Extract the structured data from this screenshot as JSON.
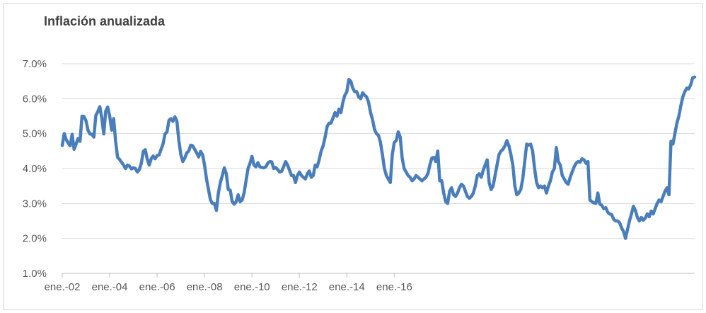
{
  "chart_data": {
    "type": "line",
    "title": "Inflación anualizada",
    "xlabel": "",
    "ylabel": "",
    "ylim": [
      0.01,
      0.07
    ],
    "yticks": [
      "1.0%",
      "2.0%",
      "3.0%",
      "4.0%",
      "5.0%",
      "6.0%",
      "7.0%"
    ],
    "xticks": [
      "ene.-02",
      "ene.-04",
      "ene.-06",
      "ene.-08",
      "ene.-10",
      "ene.-12",
      "ene.-14",
      "ene.-16"
    ],
    "grid": "horizontal",
    "legend": "none",
    "series_color": "#4a7ebb",
    "series": [
      {
        "x_start": "2002-01",
        "frequency": "monthly",
        "values": [
          0.0466,
          0.05,
          0.0483,
          0.0473,
          0.0465,
          0.0498,
          0.0455,
          0.047,
          0.0486,
          0.0478,
          0.055,
          0.0549,
          0.0537,
          0.051,
          0.0499,
          0.0498,
          0.049,
          0.0552,
          0.0563,
          0.0577,
          0.0545,
          0.0499,
          0.0565,
          0.0576,
          0.055,
          0.051,
          0.0543,
          0.0478,
          0.0432,
          0.0426,
          0.0418,
          0.041,
          0.04,
          0.041,
          0.0407,
          0.0399,
          0.0402,
          0.04,
          0.039,
          0.0397,
          0.0415,
          0.0449,
          0.0454,
          0.0427,
          0.041,
          0.0428,
          0.0436,
          0.0428,
          0.0437,
          0.0439,
          0.0455,
          0.047,
          0.0499,
          0.0505,
          0.0538,
          0.0543,
          0.0535,
          0.0548,
          0.0536,
          0.048,
          0.044,
          0.042,
          0.043,
          0.0445,
          0.045,
          0.0467,
          0.0465,
          0.0455,
          0.0445,
          0.0433,
          0.0449,
          0.044,
          0.041,
          0.037,
          0.034,
          0.031,
          0.03,
          0.03,
          0.028,
          0.033,
          0.036,
          0.038,
          0.0402,
          0.0385,
          0.034,
          0.0338,
          0.0305,
          0.0298,
          0.0305,
          0.0325,
          0.0305,
          0.031,
          0.033,
          0.0365,
          0.04,
          0.0415,
          0.0435,
          0.041,
          0.0405,
          0.0417,
          0.0405,
          0.0403,
          0.0402,
          0.0405,
          0.0415,
          0.042,
          0.0419,
          0.04,
          0.0403,
          0.0397,
          0.039,
          0.0392,
          0.0405,
          0.042,
          0.041,
          0.0395,
          0.038,
          0.038,
          0.036,
          0.038,
          0.039,
          0.038,
          0.0375,
          0.037,
          0.0385,
          0.0393,
          0.0375,
          0.038,
          0.041,
          0.0405,
          0.0425,
          0.045,
          0.0465,
          0.049,
          0.052,
          0.053,
          0.053,
          0.0545,
          0.056,
          0.055,
          0.057,
          0.056,
          0.059,
          0.061,
          0.062,
          0.0655,
          0.065,
          0.063,
          0.062,
          0.062,
          0.0605,
          0.06,
          0.0617,
          0.061,
          0.0605,
          0.059,
          0.056,
          0.054,
          0.0512,
          0.05,
          0.0495,
          0.0475,
          0.044,
          0.04,
          0.038,
          0.037,
          0.036,
          0.044,
          0.0475,
          0.048,
          0.0505,
          0.049,
          0.043,
          0.04,
          0.039,
          0.038,
          0.0375,
          0.0365,
          0.037,
          0.038,
          0.0375,
          0.037,
          0.0365,
          0.037,
          0.0375,
          0.0385,
          0.041,
          0.043,
          0.0432,
          0.042,
          0.045,
          0.0365,
          0.0365,
          0.033,
          0.0305,
          0.03,
          0.0335,
          0.0345,
          0.0325,
          0.032,
          0.033,
          0.0345,
          0.0355,
          0.035,
          0.0335,
          0.032,
          0.0315,
          0.032,
          0.033,
          0.035,
          0.038,
          0.0385,
          0.0375,
          0.0395,
          0.041,
          0.0425,
          0.036,
          0.034,
          0.035,
          0.038,
          0.041,
          0.044,
          0.045,
          0.0455,
          0.0465,
          0.048,
          0.0465,
          0.044,
          0.041,
          0.035,
          0.0325,
          0.033,
          0.034,
          0.037,
          0.042,
          0.047,
          0.0467,
          0.047,
          0.045,
          0.04,
          0.036,
          0.0345,
          0.035,
          0.0345,
          0.035,
          0.033,
          0.035,
          0.0365,
          0.039,
          0.04,
          0.046,
          0.042,
          0.041,
          0.038,
          0.037,
          0.036,
          0.0355,
          0.0375,
          0.039,
          0.0405,
          0.0415,
          0.042,
          0.0418,
          0.0428,
          0.0425,
          0.0415,
          0.042,
          0.031,
          0.0305,
          0.0302,
          0.03,
          0.033,
          0.0298,
          0.0295,
          0.0285,
          0.0288,
          0.0275,
          0.027,
          0.0268,
          0.0255,
          0.025,
          0.025,
          0.0245,
          0.023,
          0.022,
          0.02,
          0.0225,
          0.025,
          0.027,
          0.0292,
          0.028,
          0.026,
          0.025,
          0.026,
          0.0252,
          0.0258,
          0.027,
          0.0262,
          0.0278,
          0.027,
          0.0285,
          0.03,
          0.031,
          0.0305,
          0.032,
          0.0335,
          0.0345,
          0.0325,
          0.0478,
          0.047,
          0.05,
          0.053,
          0.055,
          0.058,
          0.0605,
          0.062,
          0.063,
          0.0628,
          0.064,
          0.066,
          0.0662
        ]
      }
    ]
  }
}
